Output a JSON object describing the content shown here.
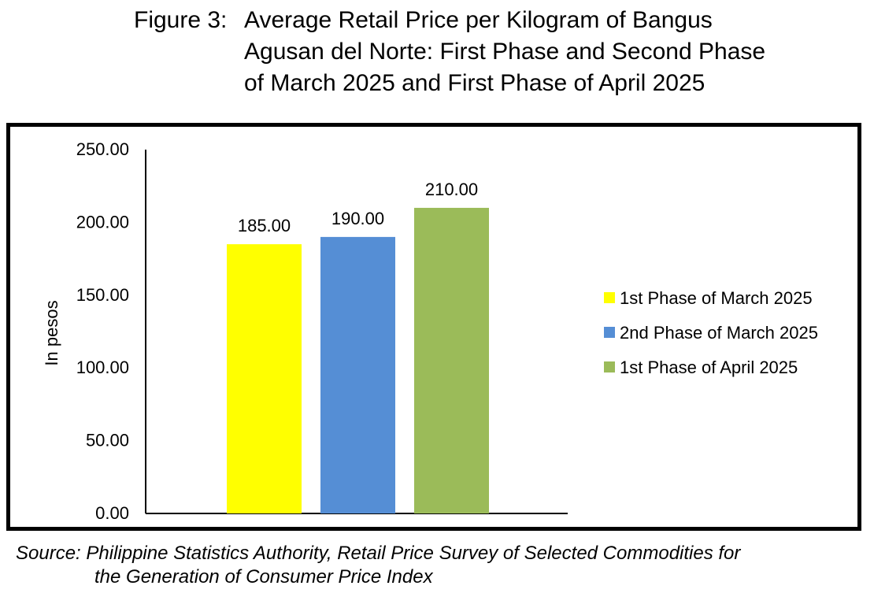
{
  "figure": {
    "label": "Figure 3:",
    "title_lines": [
      "Average Retail Price per Kilogram of Bangus",
      "Agusan del Norte: First Phase and Second Phase",
      "of March 2025 and First Phase of April 2025"
    ]
  },
  "source": {
    "line1": "Source: Philippine Statistics Authority, Retail Price Survey of Selected Commodities for",
    "line2": "the Generation of Consumer Price Index"
  },
  "chart_data": {
    "type": "bar",
    "title": "Figure 3: Average Retail Price per Kilogram of Bangus Agusan del Norte: First Phase and Second Phase of March 2025 and First Phase of April 2025",
    "xlabel": "",
    "ylabel": "In pesos",
    "ylim": [
      0,
      250
    ],
    "y_ticks": [
      "0.00",
      "50.00",
      "100.00",
      "150.00",
      "200.00",
      "250.00"
    ],
    "grid": false,
    "legend_position": "right",
    "series": [
      {
        "name": "1st Phase of March 2025",
        "values": [
          185
        ],
        "label": "185.00",
        "color": "#FFFF00"
      },
      {
        "name": "2nd Phase of March 2025",
        "values": [
          190
        ],
        "label": "190.00",
        "color": "#558ED5"
      },
      {
        "name": "1st Phase of April 2025",
        "values": [
          210
        ],
        "label": "210.00",
        "color": "#9BBB59"
      }
    ]
  }
}
